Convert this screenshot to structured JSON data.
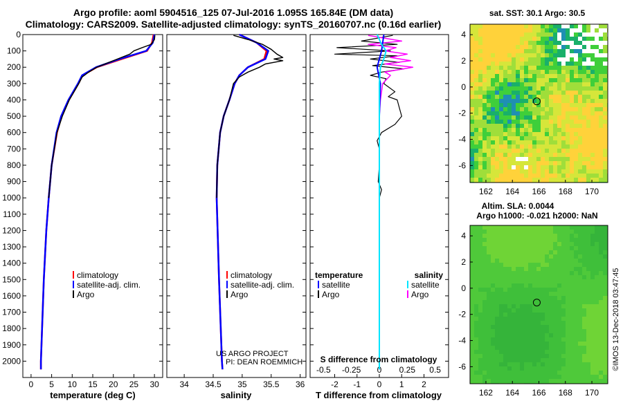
{
  "header": {
    "title_line1": "Argo profile: aoml 5904516_125 07-Jul-2016 1.095S 165.84E (DM data)",
    "title_line2": "Climatology: CARS2009. Satellite-adjusted climatology: synTS_20160707.nc (0.16d earlier)"
  },
  "colors": {
    "climatology": "#ff0000",
    "satellite": "#0000ff",
    "argo": "#000000",
    "sat_salinity": "#00e5ff",
    "argo_salinity": "#ff00ff"
  },
  "chart_data": [
    {
      "type": "line",
      "id": "temperature-profile",
      "xlabel": "temperature (deg C)",
      "ylabel": "",
      "xlim": [
        -2,
        32
      ],
      "ylim": [
        2100,
        0
      ],
      "xticks": [
        "0",
        "5",
        "10",
        "15",
        "20",
        "25",
        "30"
      ],
      "yticks": [
        "0",
        "100",
        "200",
        "300",
        "400",
        "500",
        "600",
        "700",
        "800",
        "900",
        "1000",
        "1100",
        "1200",
        "1300",
        "1400",
        "1500",
        "1600",
        "1700",
        "1800",
        "1900",
        "2000"
      ],
      "legend": [
        "climatology",
        "satellite-adj. clim.",
        "Argo"
      ],
      "series": [
        {
          "name": "climatology",
          "depth": [
            0,
            50,
            100,
            150,
            200,
            250,
            300,
            400,
            500,
            600,
            800,
            1000,
            1200,
            1500,
            2000,
            2050
          ],
          "values": [
            29.8,
            29.4,
            28.2,
            22,
            16,
            12.5,
            11.5,
            9.2,
            7.4,
            6.3,
            5,
            4.3,
            3.7,
            3.1,
            2.4,
            2.4
          ]
        },
        {
          "name": "satellite-adj. clim.",
          "depth": [
            0,
            50,
            100,
            150,
            200,
            250,
            300,
            400,
            500,
            600,
            800,
            1000,
            1200,
            1500,
            2000,
            2050
          ],
          "values": [
            30,
            29.6,
            28,
            21.5,
            15.8,
            12.4,
            11.4,
            9.1,
            7.3,
            6.2,
            5,
            4.3,
            3.7,
            3.1,
            2.4,
            2.4
          ]
        },
        {
          "name": "Argo",
          "depth": [
            5,
            30,
            60,
            80,
            100,
            120,
            150,
            180,
            200,
            230,
            260,
            300,
            400,
            500,
            600,
            800,
            1000
          ],
          "values": [
            30.1,
            30,
            29.2,
            27,
            25,
            24,
            21,
            18,
            16,
            14,
            12.4,
            11.6,
            9.3,
            7.6,
            6.3,
            5,
            4.3
          ]
        }
      ]
    },
    {
      "type": "line",
      "id": "salinity-profile",
      "xlabel": "salinity",
      "xlim": [
        33.7,
        36.1
      ],
      "ylim": [
        2100,
        0
      ],
      "xticks": [
        "34",
        "34.5",
        "35",
        "35.5",
        "36"
      ],
      "legend": [
        "climatology",
        "satellite-adj. clim.",
        "Argo"
      ],
      "series": [
        {
          "name": "climatology",
          "depth": [
            0,
            50,
            100,
            150,
            200,
            250,
            300,
            400,
            500,
            600,
            800,
            1000,
            1500,
            2000,
            2050
          ],
          "values": [
            34.95,
            35.25,
            35.42,
            35.38,
            35.1,
            34.95,
            34.87,
            34.78,
            34.68,
            34.62,
            34.57,
            34.56,
            34.6,
            34.65,
            34.66
          ]
        },
        {
          "name": "satellite-adj. clim.",
          "depth": [
            0,
            50,
            100,
            150,
            200,
            250,
            300,
            400,
            500,
            600,
            800,
            1000,
            1500,
            2000,
            2050
          ],
          "values": [
            34.95,
            35.25,
            35.45,
            35.4,
            35.1,
            34.95,
            34.87,
            34.78,
            34.68,
            34.62,
            34.57,
            34.56,
            34.6,
            34.65,
            34.66
          ]
        },
        {
          "name": "Argo",
          "depth": [
            5,
            30,
            60,
            90,
            120,
            140,
            150,
            160,
            180,
            200,
            230,
            260,
            300,
            400,
            500,
            600,
            800,
            1000
          ],
          "values": [
            34.85,
            35.1,
            35.35,
            35.5,
            35.6,
            35.7,
            35.55,
            35.7,
            35.4,
            35.3,
            35.1,
            34.95,
            34.85,
            34.78,
            34.68,
            34.62,
            34.57,
            34.56
          ]
        }
      ],
      "annotation": [
        "US ARGO PROJECT",
        "PI: DEAN ROEMMICH"
      ]
    },
    {
      "type": "line",
      "id": "difference-profile",
      "xlabel": "T difference from climatology",
      "xlabel_top": "S difference from climatology",
      "xlim": [
        -3.1,
        3.1
      ],
      "ylim": [
        2100,
        0
      ],
      "xticks": [
        "-2",
        "-1",
        "0",
        "1",
        "2"
      ],
      "xticks_top": [
        "-0.5",
        "-0.25",
        "0",
        "0.25",
        "0.5"
      ],
      "legend": {
        "temperature": [
          "satellite",
          "Argo"
        ],
        "salinity": [
          "satellite",
          "Argo"
        ]
      },
      "legend_headers": [
        "temperature",
        "salinity"
      ],
      "series": [
        {
          "name": "T satellite",
          "depth": [
            0,
            100,
            200,
            300,
            500,
            800,
            1000,
            1500,
            2000,
            2050
          ],
          "values": [
            0.2,
            0.1,
            -0.1,
            0.05,
            0,
            0,
            0,
            0,
            0,
            0
          ]
        },
        {
          "name": "T Argo",
          "depth": [
            5,
            40,
            60,
            80,
            100,
            120,
            130,
            150,
            170,
            190,
            210,
            230,
            250,
            270,
            300,
            350,
            380,
            400,
            450,
            500,
            550,
            600,
            650,
            700,
            800,
            900,
            950,
            1000,
            1100
          ],
          "values": [
            0.6,
            -0.8,
            0.8,
            -1.9,
            0.5,
            -2,
            0.8,
            -0.4,
            0.9,
            -0.3,
            1.1,
            0.1,
            -0.4,
            0.3,
            0.2,
            0.7,
            0.4,
            0.8,
            0.9,
            1,
            0.7,
            0.1,
            -0.1,
            0,
            0,
            -0.05,
            0.1,
            0,
            0
          ]
        },
        {
          "name": "S satellite",
          "depth": [
            0,
            60,
            100,
            150,
            200,
            300,
            500,
            800,
            1000,
            2000,
            2050
          ],
          "values": [
            -0.02,
            0.02,
            0.06,
            0.04,
            0.01,
            0,
            0,
            0,
            0,
            0,
            0
          ]
        },
        {
          "name": "S Argo",
          "depth": [
            5,
            40,
            60,
            80,
            100,
            120,
            140,
            160,
            180,
            200,
            230,
            250,
            300,
            400,
            500
          ],
          "values": [
            -0.1,
            0.2,
            -0.1,
            0.15,
            0.05,
            0.25,
            0.1,
            0.28,
            0.05,
            0.3,
            0.05,
            0.1,
            0.03,
            0.01,
            0
          ]
        }
      ]
    },
    {
      "type": "heatmap",
      "id": "sst-map",
      "title": "sat. SST: 30.1 Argo: 30.5",
      "xlim": [
        160.8,
        171.2
      ],
      "ylim": [
        -7.3,
        4.8
      ],
      "xticks": [
        "162",
        "164",
        "166",
        "168",
        "170"
      ],
      "yticks": [
        "4",
        "2",
        "0",
        "-2",
        "-4",
        "-6"
      ],
      "marker": {
        "lon": 165.84,
        "lat": -1.095
      }
    },
    {
      "type": "heatmap",
      "id": "sla-map",
      "title": "Altim. SLA: 0.0044",
      "subtitle": "Argo h1000: -0.021 h2000: NaN",
      "xlim": [
        160.8,
        171.2
      ],
      "ylim": [
        -7.3,
        4.8
      ],
      "xticks": [
        "162",
        "164",
        "166",
        "168",
        "170"
      ],
      "yticks": [
        "4",
        "2",
        "0",
        "-2",
        "-4",
        "-6"
      ],
      "marker": {
        "lon": 165.84,
        "lat": -1.095
      }
    }
  ],
  "credit": "©IMOS 13-Dec-2018 03:47:45"
}
